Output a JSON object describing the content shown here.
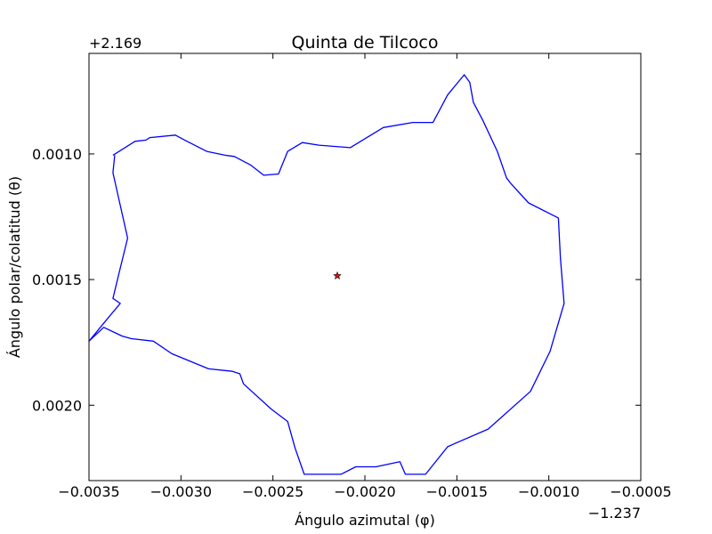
{
  "chart_data": {
    "type": "line",
    "title": "Quinta de Tilcoco",
    "xlabel": "Ángulo azimutal (φ)",
    "ylabel": "Ángulo polar/colatitud (θ)",
    "x_offset_label": "−1.237",
    "y_offset_label": "+2.169",
    "xlim": [
      -0.0035,
      -0.0005
    ],
    "ylim": [
      0.0023,
      0.0006
    ],
    "x_ticks": [
      -0.0035,
      -0.003,
      -0.0025,
      -0.002,
      -0.0015,
      -0.001,
      -0.0005
    ],
    "x_tick_labels": [
      "−0.0035",
      "−0.0030",
      "−0.0025",
      "−0.0020",
      "−0.0015",
      "−0.0010",
      "−0.0005"
    ],
    "y_ticks": [
      0.001,
      0.0015,
      0.002
    ],
    "y_tick_labels": [
      "0.0010",
      "0.0015",
      "0.0020"
    ],
    "grid": false,
    "series": [
      {
        "color": "#0000ff",
        "x": [
          -0.00337,
          -0.00325,
          -0.00319,
          -0.00317,
          -0.00303,
          -0.00298,
          -0.00286,
          -0.00276,
          -0.00271,
          -0.00262,
          -0.00255,
          -0.00247,
          -0.00242,
          -0.00234,
          -0.00225,
          -0.00208,
          -0.0019,
          -0.00174,
          -0.00163,
          -0.00155,
          -0.00146,
          -0.00143,
          -0.00141,
          -0.00136,
          -0.00128,
          -0.00123,
          -0.00121,
          -0.00111,
          -0.000948,
          -0.000937,
          -0.000917,
          -0.000993,
          -0.0011,
          -0.00133,
          -0.00155,
          -0.00167,
          -0.00178,
          -0.00181,
          -0.00194,
          -0.00205,
          -0.00213,
          -0.00222,
          -0.00233,
          -0.00238,
          -0.00242,
          -0.00251,
          -0.00266,
          -0.00268,
          -0.00272,
          -0.00285,
          -0.00305,
          -0.00315,
          -0.00327,
          -0.00332,
          -0.00342,
          -0.0035,
          -0.00341,
          -0.00333,
          -0.00337,
          -0.00333,
          -0.00329,
          -0.00337,
          -0.00336
        ],
        "y": [
          0.001005,
          0.00095,
          0.000945,
          0.000935,
          0.000925,
          0.000945,
          0.00099,
          0.001005,
          0.00101,
          0.001045,
          0.001085,
          0.00108,
          0.00099,
          0.000955,
          0.000965,
          0.000975,
          0.000895,
          0.000875,
          0.000875,
          0.000765,
          0.000685,
          0.000715,
          0.000795,
          0.000865,
          0.00099,
          0.001095,
          0.001115,
          0.001195,
          0.001255,
          0.001415,
          0.001595,
          0.001785,
          0.001945,
          0.002095,
          0.002165,
          0.002275,
          0.002275,
          0.002225,
          0.002245,
          0.002245,
          0.002275,
          0.002275,
          0.002275,
          0.00217,
          0.002065,
          0.002015,
          0.001915,
          0.001875,
          0.001865,
          0.001855,
          0.001795,
          0.001745,
          0.001735,
          0.001725,
          0.00169,
          0.001745,
          0.001665,
          0.001595,
          0.001575,
          0.001455,
          0.001335,
          0.001075,
          0.001005
        ]
      }
    ],
    "marker": {
      "x": -0.00215,
      "y": 0.001485,
      "shape": "star",
      "color": "#ff0000",
      "edge_color": "#000000"
    }
  }
}
